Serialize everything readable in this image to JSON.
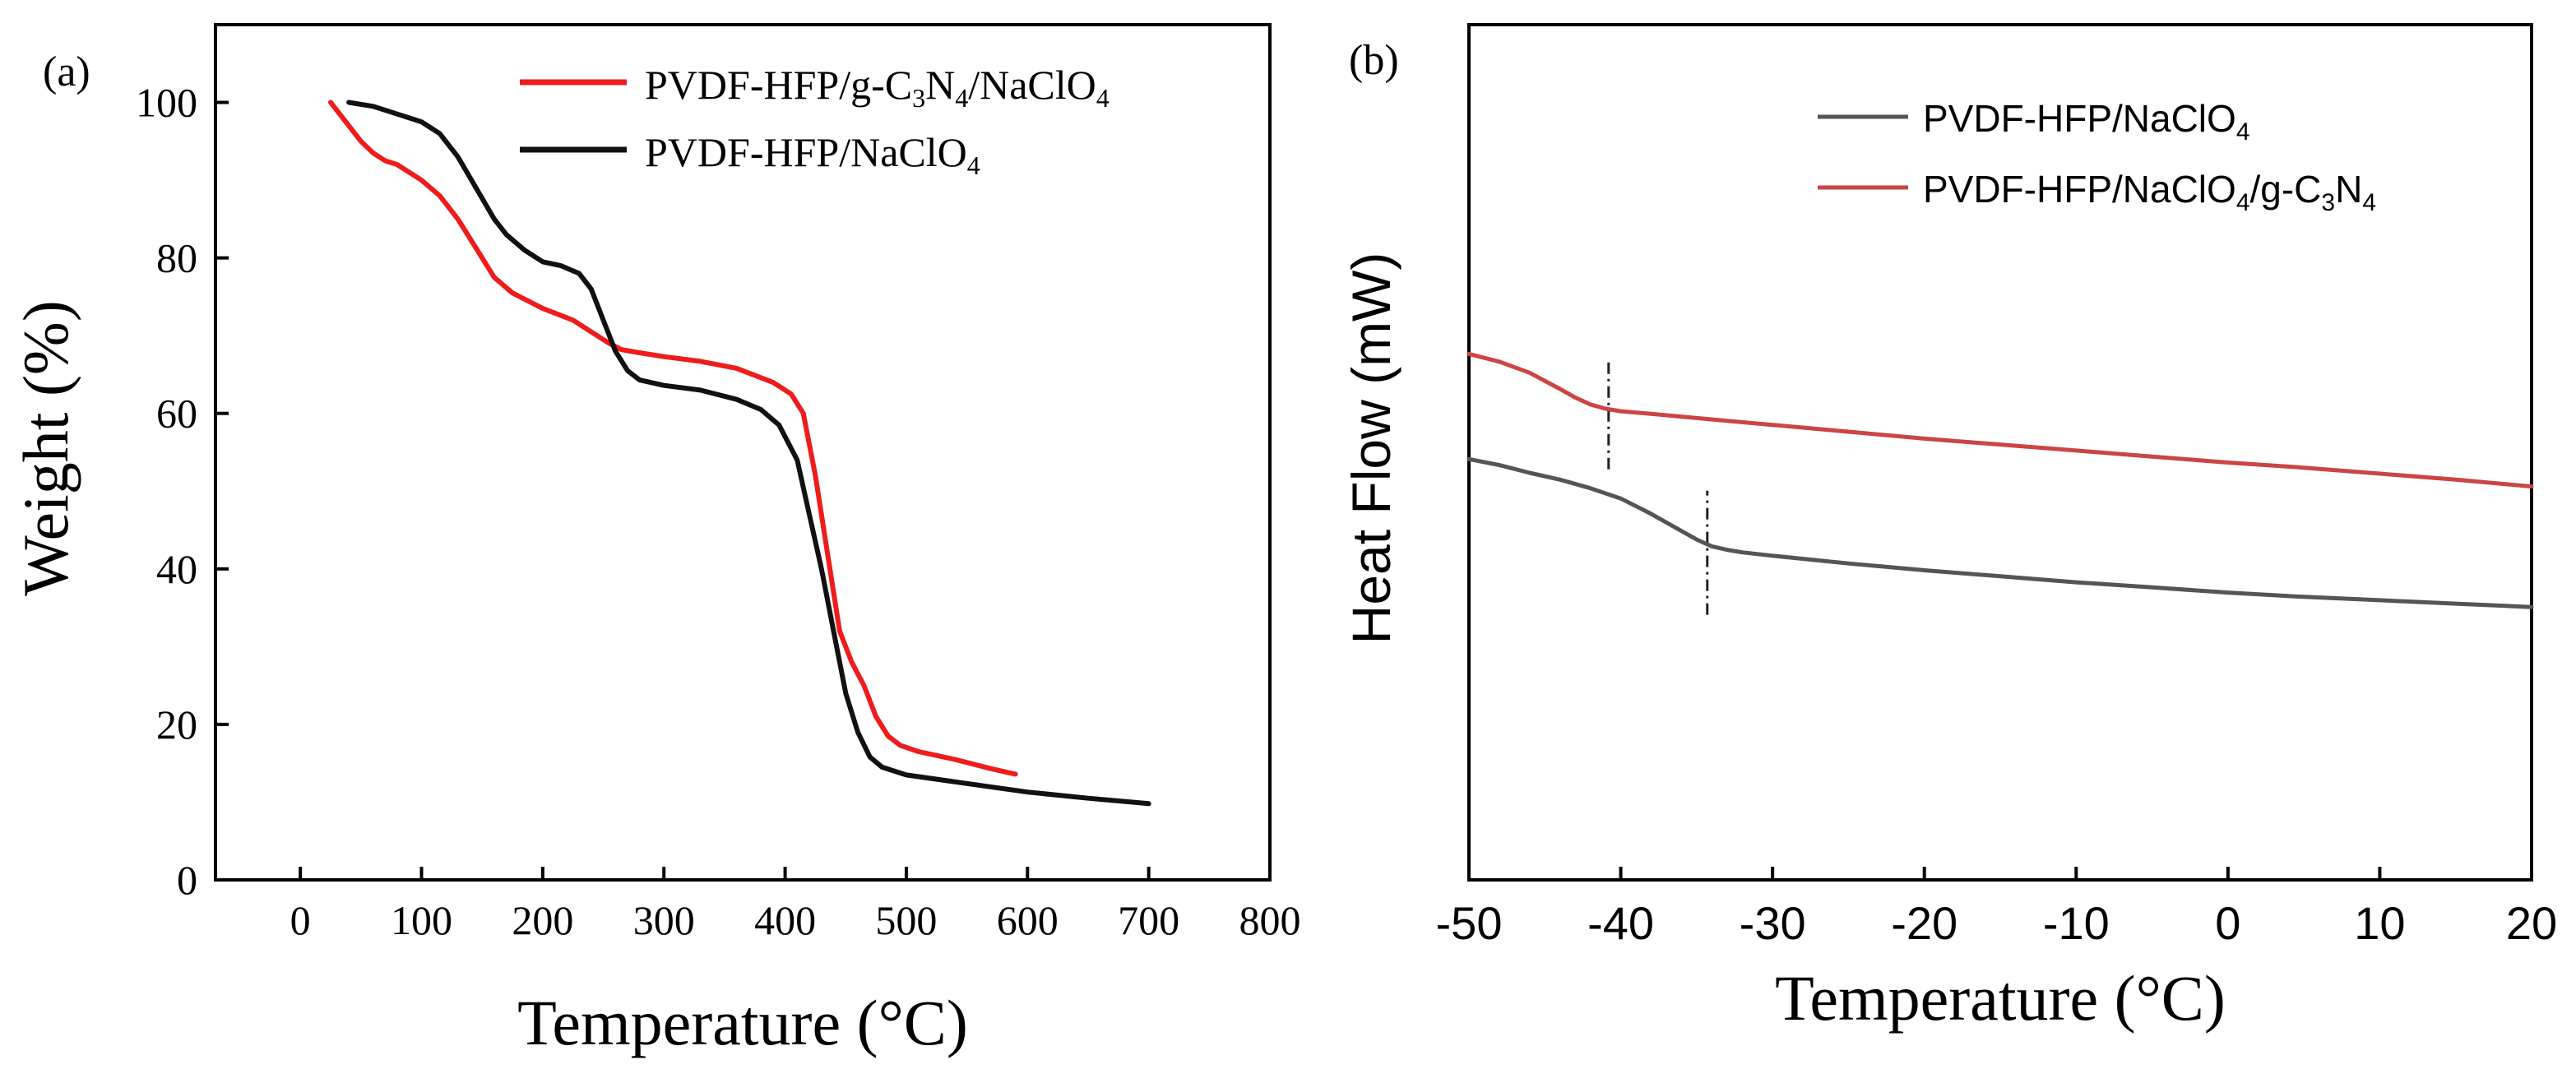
{
  "chart_data": [
    {
      "type": "line",
      "panel_label": "(a)",
      "xlabel": "Temperature (°C)",
      "ylabel": "Weight (%)",
      "xlim": [
        -70,
        800
      ],
      "ylim": [
        0,
        110
      ],
      "x_ticks": [
        0,
        100,
        200,
        300,
        400,
        500,
        600,
        700,
        800
      ],
      "y_ticks": [
        0,
        20,
        40,
        60,
        80,
        100
      ],
      "tick_labels_x": [
        "0",
        "100",
        "200",
        "300",
        "400",
        "500",
        "600",
        "700",
        "800"
      ],
      "tick_labels_y": [
        "0",
        "20",
        "40",
        "60",
        "80",
        "100"
      ],
      "legend_position": "top-right",
      "series": [
        {
          "name": "PVDF-HFP/g-C3N4/NaClO4",
          "legend_main": "PVDF-HFP/g-C",
          "legend_sub1": "3",
          "legend_mid": "N",
          "legend_sub2": "4",
          "legend_tail": "/NaClO",
          "legend_sub3": "4",
          "color": "#ee1c1c",
          "x": [
            25,
            30,
            40,
            50,
            60,
            70,
            80,
            100,
            115,
            130,
            150,
            160,
            175,
            200,
            225,
            240,
            255,
            265,
            280,
            300,
            330,
            360,
            390,
            405,
            415,
            425,
            435,
            445,
            455,
            465,
            475,
            485,
            495,
            510,
            540,
            570,
            590
          ],
          "y": [
            100,
            99,
            97,
            95,
            93.5,
            92.5,
            92,
            90,
            88,
            85,
            80,
            77.5,
            75.5,
            73.5,
            72,
            70.5,
            69,
            68.2,
            67.8,
            67.3,
            66.7,
            65.8,
            64,
            62.5,
            60,
            52,
            42,
            32,
            28,
            25,
            21,
            18.5,
            17.3,
            16.5,
            15.5,
            14.3,
            13.6
          ]
        },
        {
          "name": "PVDF-HFP/NaClO4",
          "legend_main": "PVDF-HFP/NaClO",
          "legend_sub": "4",
          "color": "#111111",
          "x": [
            40,
            60,
            80,
            100,
            115,
            130,
            145,
            160,
            170,
            185,
            200,
            215,
            230,
            240,
            250,
            260,
            270,
            280,
            300,
            330,
            360,
            380,
            395,
            410,
            420,
            430,
            440,
            450,
            460,
            470,
            480,
            500,
            550,
            600,
            650,
            700
          ],
          "y": [
            100,
            99.5,
            98.5,
            97.5,
            96,
            93,
            89,
            85,
            83,
            81,
            79.5,
            79,
            78,
            76,
            72,
            68,
            65.5,
            64.3,
            63.6,
            63,
            61.8,
            60.5,
            58.5,
            54,
            47,
            40,
            32,
            24,
            19,
            15.8,
            14.5,
            13.5,
            12.4,
            11.3,
            10.5,
            9.8
          ]
        }
      ]
    },
    {
      "type": "line",
      "panel_label": "(b)",
      "xlabel": "Temperature (°C)",
      "ylabel": "Heat Flow (mW)",
      "xlim": [
        -50,
        20
      ],
      "ylim": [
        0,
        100
      ],
      "x_ticks": [
        -50,
        -40,
        -30,
        -20,
        -10,
        0,
        10,
        20
      ],
      "tick_labels_x": [
        "-50",
        "-40",
        "-30",
        "-20",
        "-10",
        "0",
        "10",
        "20"
      ],
      "y_ticks": [],
      "legend_position": "top-right",
      "annotations": [
        {
          "type": "vertical-dashdot",
          "x": -40.8,
          "y_range": [
            48,
            60.5
          ]
        },
        {
          "type": "vertical-dashdot",
          "x": -34.3,
          "y_range": [
            31,
            45.5
          ]
        }
      ],
      "series": [
        {
          "name": "PVDF-HFP/NaClO4",
          "legend_main": "PVDF-HFP/NaClO",
          "legend_sub": "4",
          "color": "#555555",
          "x": [
            -50,
            -48,
            -46,
            -44,
            -42,
            -40,
            -38,
            -36,
            -35,
            -34,
            -33,
            -32,
            -30,
            -25,
            -20,
            -15,
            -10,
            -5,
            0,
            5,
            10,
            15,
            20
          ],
          "y": [
            49.2,
            48.5,
            47.6,
            46.8,
            45.8,
            44.6,
            42.8,
            40.8,
            39.8,
            39,
            38.6,
            38.3,
            37.9,
            37,
            36.2,
            35.5,
            34.8,
            34.2,
            33.6,
            33.1,
            32.7,
            32.3,
            31.9
          ]
        },
        {
          "name": "PVDF-HFP/NaClO4/g-C3N4",
          "legend_main": "PVDF-HFP/NaClO",
          "legend_sub1": "4",
          "legend_mid": "/g-C",
          "legend_sub2": "3",
          "legend_tail": "N",
          "legend_sub3": "4",
          "color": "#cc4444",
          "x": [
            -50,
            -48,
            -46,
            -44,
            -43,
            -42,
            -41,
            -40,
            -38,
            -35,
            -30,
            -25,
            -20,
            -15,
            -10,
            -5,
            0,
            5,
            10,
            15,
            20
          ],
          "y": [
            61.5,
            60.6,
            59.3,
            57.4,
            56.4,
            55.6,
            55.1,
            54.8,
            54.5,
            54,
            53.2,
            52.4,
            51.6,
            50.9,
            50.2,
            49.5,
            48.8,
            48.2,
            47.5,
            46.8,
            46
          ]
        }
      ]
    }
  ]
}
